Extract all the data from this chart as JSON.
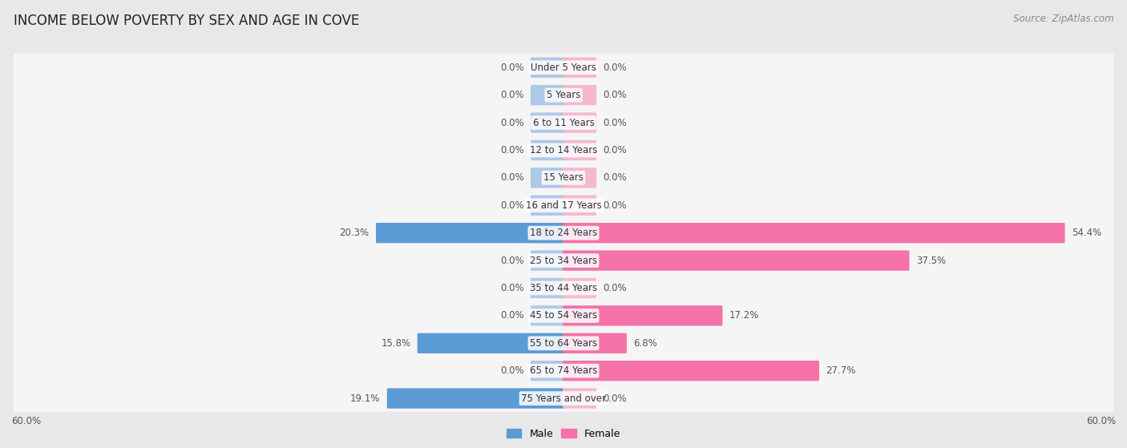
{
  "title": "INCOME BELOW POVERTY BY SEX AND AGE IN COVE",
  "source": "Source: ZipAtlas.com",
  "categories": [
    "Under 5 Years",
    "5 Years",
    "6 to 11 Years",
    "12 to 14 Years",
    "15 Years",
    "16 and 17 Years",
    "18 to 24 Years",
    "25 to 34 Years",
    "35 to 44 Years",
    "45 to 54 Years",
    "55 to 64 Years",
    "65 to 74 Years",
    "75 Years and over"
  ],
  "male": [
    0.0,
    0.0,
    0.0,
    0.0,
    0.0,
    0.0,
    20.3,
    0.0,
    0.0,
    0.0,
    15.8,
    0.0,
    19.1
  ],
  "female": [
    0.0,
    0.0,
    0.0,
    0.0,
    0.0,
    0.0,
    54.4,
    37.5,
    0.0,
    17.2,
    6.8,
    27.7,
    0.0
  ],
  "male_color_active": "#5b9bd5",
  "male_color_inactive": "#aec8e8",
  "female_color_active": "#f472a8",
  "female_color_inactive": "#f5b8d0",
  "background_color": "#e8e8e8",
  "row_bg_color": "#f5f5f5",
  "row_border_color": "#d0d0d0",
  "xlim": 60.0,
  "stub_size": 3.5,
  "legend_male": "Male",
  "legend_female": "Female",
  "title_fontsize": 12,
  "source_fontsize": 8.5,
  "label_fontsize": 8.5,
  "category_fontsize": 8.5
}
